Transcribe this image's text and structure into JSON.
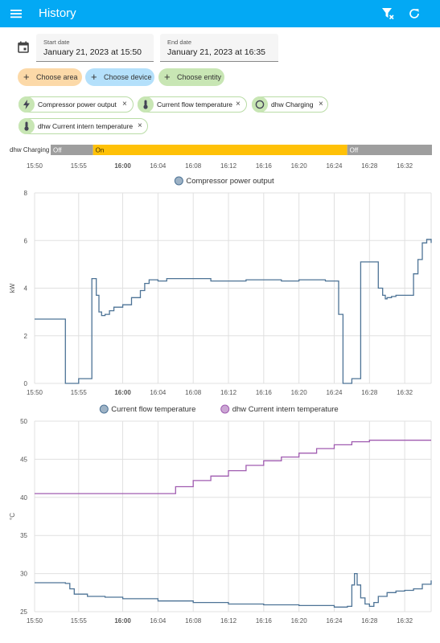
{
  "app_bar": {
    "title": "History",
    "menu_icon": "menu-icon",
    "filter_icon": "filter-remove-icon",
    "refresh_icon": "refresh-icon",
    "background": "#03a9f4"
  },
  "date_range": {
    "start": {
      "label": "Start date",
      "value": "January 21, 2023 at 15:50"
    },
    "end": {
      "label": "End date",
      "value": "January 21, 2023 at 16:35"
    }
  },
  "target_buttons": [
    {
      "label": "Choose area",
      "color": "#fcd9a8"
    },
    {
      "label": "Choose device",
      "color": "#b4e0fb"
    },
    {
      "label": "Choose entity",
      "color": "#c8e6b4"
    }
  ],
  "entities": [
    {
      "label": "Compressor power output",
      "icon": "lightning-bolt-icon"
    },
    {
      "label": "Current flow temperature",
      "icon": "thermometer-icon"
    },
    {
      "label": "dhw Charging",
      "icon": "circle-outline-icon"
    },
    {
      "label": "dhw Current intern temperature",
      "icon": "thermometer-icon"
    }
  ],
  "timeline": {
    "entity": "dhw Charging",
    "segments": [
      {
        "state": "Off",
        "from": "15:50",
        "to": "15:55",
        "color": "#9e9e9e"
      },
      {
        "state": "On",
        "from": "15:55",
        "to": "16:25",
        "color": "#ffc107"
      },
      {
        "state": "Off",
        "from": "16:25",
        "to": "16:35",
        "color": "#9e9e9e"
      }
    ],
    "ticks": [
      "15:50",
      "15:55",
      "16:00",
      "16:04",
      "16:08",
      "16:12",
      "16:16",
      "16:20",
      "16:24",
      "16:28",
      "16:32"
    ]
  },
  "chart_data": [
    {
      "type": "line",
      "ylabel": "kW",
      "ylim": [
        0,
        8
      ],
      "yticks": [
        0,
        2,
        4,
        6,
        8
      ],
      "xlim": [
        "15:50",
        "16:35"
      ],
      "xticks": [
        "15:50",
        "15:55",
        "16:00",
        "16:04",
        "16:08",
        "16:12",
        "16:16",
        "16:20",
        "16:24",
        "16:28",
        "16:32"
      ],
      "grid": true,
      "legend_position": "top-center",
      "series": [
        {
          "name": "Compressor power output",
          "color": "#4d7396",
          "step": true,
          "x": [
            "15:50",
            "15:53.5",
            "15:55",
            "15:56.5",
            "15:57",
            "15:57.3",
            "15:57.6",
            "15:58",
            "15:58.5",
            "15:59",
            "16:00",
            "16:01",
            "16:02",
            "16:02.5",
            "16:03",
            "16:04",
            "16:05",
            "16:10",
            "16:14",
            "16:18",
            "16:20",
            "16:23",
            "16:24.5",
            "16:25",
            "16:25.5",
            "16:26",
            "16:27",
            "16:29",
            "16:29.5",
            "16:29.8",
            "16:30",
            "16:30.5",
            "16:31",
            "16:32",
            "16:33",
            "16:33.5",
            "16:34",
            "16:34.5",
            "16:35"
          ],
          "y": [
            2.7,
            0,
            0.2,
            4.4,
            3.7,
            3.0,
            2.85,
            2.9,
            3.05,
            3.2,
            3.3,
            3.6,
            3.9,
            4.2,
            4.35,
            4.3,
            4.4,
            4.3,
            4.35,
            4.3,
            4.35,
            4.3,
            2.9,
            0,
            0,
            0.2,
            5.1,
            4.0,
            3.7,
            3.55,
            3.6,
            3.65,
            3.7,
            3.7,
            4.6,
            5.2,
            5.9,
            6.05,
            5.9
          ]
        }
      ]
    },
    {
      "type": "line",
      "ylabel": "°C",
      "ylim": [
        25,
        50
      ],
      "yticks": [
        25,
        30,
        35,
        40,
        45,
        50
      ],
      "xlim": [
        "15:50",
        "16:35"
      ],
      "xticks": [
        "15:50",
        "15:55",
        "16:00",
        "16:04",
        "16:08",
        "16:12",
        "16:16",
        "16:20",
        "16:24",
        "16:28",
        "16:32"
      ],
      "grid": true,
      "legend_position": "top-center",
      "series": [
        {
          "name": "Current flow temperature",
          "color": "#4d7396",
          "step": true,
          "x": [
            "15:50",
            "15:53.5",
            "15:54",
            "15:54.5",
            "15:56",
            "15:58",
            "16:00",
            "16:04",
            "16:08",
            "16:12",
            "16:16",
            "16:20",
            "16:24",
            "16:25.5",
            "16:26",
            "16:26.3",
            "16:26.6",
            "16:27",
            "16:27.5",
            "16:28",
            "16:28.5",
            "16:29",
            "16:30",
            "16:31",
            "16:32",
            "16:33",
            "16:34",
            "16:35"
          ],
          "y": [
            28.8,
            28.7,
            28.0,
            27.3,
            27.0,
            26.9,
            26.7,
            26.4,
            26.2,
            26.0,
            25.9,
            25.8,
            25.6,
            25.7,
            28.5,
            30.0,
            28.5,
            26.8,
            26.0,
            25.7,
            26.2,
            27.0,
            27.5,
            27.7,
            27.8,
            28.0,
            28.6,
            29.1
          ]
        },
        {
          "name": "dhw Current intern temperature",
          "color": "#a05cb0",
          "step": true,
          "x": [
            "15:50",
            "16:04",
            "16:06",
            "16:08",
            "16:10",
            "16:12",
            "16:14",
            "16:16",
            "16:18",
            "16:20",
            "16:22",
            "16:24",
            "16:26",
            "16:28",
            "16:30",
            "16:32",
            "16:35"
          ],
          "y": [
            40.5,
            40.5,
            41.4,
            42.2,
            42.8,
            43.5,
            44.2,
            44.8,
            45.3,
            45.8,
            46.4,
            46.9,
            47.3,
            47.5,
            47.5,
            47.5,
            47.5
          ]
        }
      ]
    }
  ]
}
